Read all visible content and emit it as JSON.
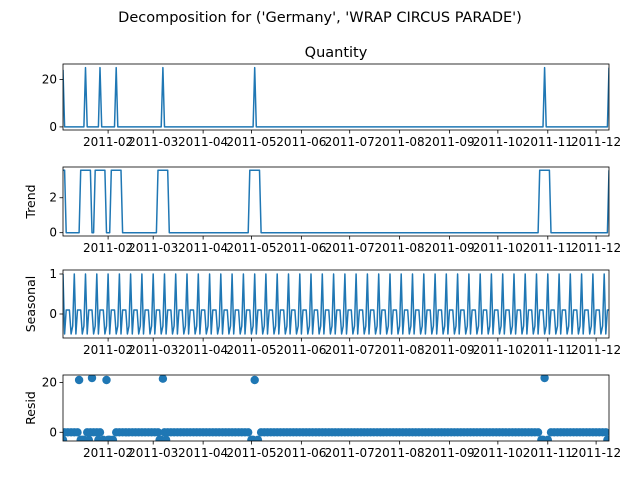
{
  "chart_data": {
    "type": "line",
    "title": "Decomposition for ('Germany', 'WRAP CIRCUS PARADE')",
    "x_range": [
      "2011-01-04",
      "2011-12-09"
    ],
    "x_tick_labels": [
      "2011-02",
      "2011-03",
      "2011-04",
      "2011-05",
      "2011-06",
      "2011-07",
      "2011-08",
      "2011-09",
      "2011-10",
      "2011-11",
      "2011-12"
    ],
    "x_tick_dates": [
      "2011-02-01",
      "2011-03-01",
      "2011-04-01",
      "2011-05-01",
      "2011-06-01",
      "2011-07-01",
      "2011-08-01",
      "2011-09-01",
      "2011-10-01",
      "2011-11-01",
      "2011-12-01"
    ],
    "line_color": "#1f77b4",
    "panels": [
      {
        "name": "quantity",
        "subplot_title": "Quantity",
        "ylabel": "",
        "style": "line",
        "ylim": [
          -1.3,
          26.5
        ],
        "yticks": [
          0,
          20
        ],
        "baseline": 0,
        "spikes": [
          {
            "start": "2011-01-04",
            "end": "2011-01-04",
            "value": 24
          },
          {
            "start": "2011-01-18",
            "end": "2011-01-18",
            "value": 25
          },
          {
            "start": "2011-01-27",
            "end": "2011-01-27",
            "value": 25
          },
          {
            "start": "2011-02-06",
            "end": "2011-02-06",
            "value": 25
          },
          {
            "start": "2011-03-07",
            "end": "2011-03-07",
            "value": 25
          },
          {
            "start": "2011-05-03",
            "end": "2011-05-03",
            "value": 25
          },
          {
            "start": "2011-10-30",
            "end": "2011-10-30",
            "value": 25
          },
          {
            "start": "2011-12-09",
            "end": "2011-12-09",
            "value": 25
          }
        ]
      },
      {
        "name": "trend",
        "subplot_title": "",
        "ylabel": "Trend",
        "style": "line",
        "ylim": [
          -0.19,
          3.76
        ],
        "yticks": [
          0,
          2
        ],
        "baseline": 0,
        "spikes": [
          {
            "start": "2011-01-04",
            "end": "2011-01-05",
            "value": 3.57
          },
          {
            "start": "2011-01-15",
            "end": "2011-01-21",
            "value": 3.57
          },
          {
            "start": "2011-01-24",
            "end": "2011-01-30",
            "value": 3.57
          },
          {
            "start": "2011-02-03",
            "end": "2011-02-09",
            "value": 3.57
          },
          {
            "start": "2011-03-04",
            "end": "2011-03-10",
            "value": 3.57
          },
          {
            "start": "2011-04-30",
            "end": "2011-05-06",
            "value": 3.57
          },
          {
            "start": "2011-10-27",
            "end": "2011-11-02",
            "value": 3.57
          },
          {
            "start": "2011-12-09",
            "end": "2011-12-09",
            "value": 3.57
          }
        ]
      },
      {
        "name": "seasonal",
        "subplot_title": "",
        "ylabel": "Seasonal",
        "style": "seasonal",
        "ylim": [
          -0.6,
          1.1
        ],
        "yticks": [
          -0.0,
          1
        ],
        "ytick_labels": [
          "0",
          "1"
        ],
        "pattern": [
          1.0,
          -0.5,
          0.1,
          0.1,
          0.1,
          -0.5,
          -0.3
        ]
      },
      {
        "name": "resid",
        "subplot_title": "",
        "ylabel": "Resid",
        "style": "scatter",
        "ylim": [
          -3.5,
          23
        ],
        "yticks": [
          0,
          20
        ],
        "baseline_value": 0,
        "dip_value": -3,
        "outliers": [
          {
            "date": "2011-01-14",
            "value": 21
          },
          {
            "date": "2011-01-22",
            "value": 21.8
          },
          {
            "date": "2011-01-31",
            "value": 21
          },
          {
            "date": "2011-03-07",
            "value": 21.5
          },
          {
            "date": "2011-05-03",
            "value": 21
          },
          {
            "date": "2011-10-30",
            "value": 21.8
          }
        ],
        "dips": [
          "2011-01-04",
          "2011-01-15",
          "2011-01-16",
          "2011-01-17",
          "2011-01-20",
          "2011-01-26",
          "2011-01-29",
          "2011-02-01",
          "2011-02-02",
          "2011-02-04",
          "2011-03-05",
          "2011-03-06",
          "2011-03-09",
          "2011-05-01",
          "2011-05-02",
          "2011-05-05",
          "2011-10-28",
          "2011-10-29",
          "2011-11-01",
          "2011-12-08",
          "2011-12-09"
        ],
        "regular_step_days": 2
      }
    ]
  }
}
